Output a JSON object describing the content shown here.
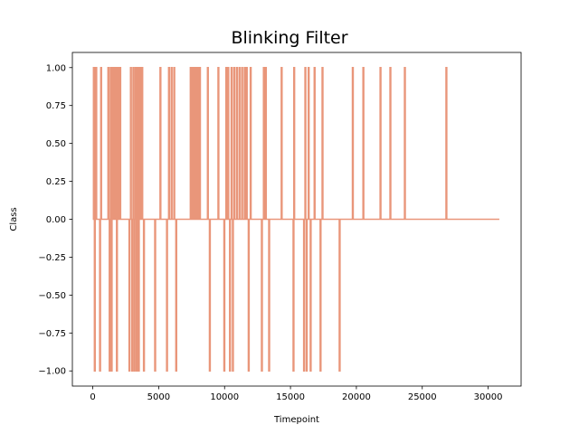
{
  "chart_data": {
    "type": "line",
    "title": "Blinking Filter",
    "xlabel": "Timepoint",
    "ylabel": "Class",
    "xlim": [
      -1550,
      32500
    ],
    "ylim": [
      -1.1,
      1.1
    ],
    "xticks": [
      0,
      5000,
      10000,
      15000,
      20000,
      25000,
      30000
    ],
    "xtick_labels": [
      "0",
      "5000",
      "10000",
      "15000",
      "20000",
      "25000",
      "30000"
    ],
    "yticks": [
      -1.0,
      -0.75,
      -0.5,
      -0.25,
      0.0,
      0.25,
      0.5,
      0.75,
      1.0
    ],
    "ytick_labels": [
      "−1.00",
      "−0.75",
      "−0.50",
      "−0.25",
      "0.00",
      "0.25",
      "0.50",
      "0.75",
      "1.00"
    ],
    "grid": false,
    "legend": "none",
    "x_end": 30850,
    "series": [
      {
        "color": "#E9967A",
        "spikes": [
          {
            "x": 50,
            "v": 1
          },
          {
            "x": 120,
            "v": -1
          },
          {
            "x": 180,
            "v": 1
          },
          {
            "x": 230,
            "v": 1
          },
          {
            "x": 520,
            "v": -1
          },
          {
            "x": 600,
            "v": 1
          },
          {
            "x": 1150,
            "v": 1
          },
          {
            "x": 1250,
            "v": -1
          },
          {
            "x": 1330,
            "v": 1
          },
          {
            "x": 1400,
            "v": -1
          },
          {
            "x": 1480,
            "v": 1
          },
          {
            "x": 1560,
            "v": 1
          },
          {
            "x": 1640,
            "v": 1
          },
          {
            "x": 1720,
            "v": 1
          },
          {
            "x": 1800,
            "v": -1
          },
          {
            "x": 1880,
            "v": 1
          },
          {
            "x": 1960,
            "v": 1
          },
          {
            "x": 2050,
            "v": 1
          },
          {
            "x": 2750,
            "v": -1
          },
          {
            "x": 2860,
            "v": 1
          },
          {
            "x": 2960,
            "v": -1
          },
          {
            "x": 3050,
            "v": 1
          },
          {
            "x": 3130,
            "v": -1
          },
          {
            "x": 3220,
            "v": 1
          },
          {
            "x": 3300,
            "v": -1
          },
          {
            "x": 3380,
            "v": 1
          },
          {
            "x": 3460,
            "v": -1
          },
          {
            "x": 3540,
            "v": 1
          },
          {
            "x": 3620,
            "v": 1
          },
          {
            "x": 3720,
            "v": 1
          },
          {
            "x": 3850,
            "v": -1
          },
          {
            "x": 4700,
            "v": -1
          },
          {
            "x": 5100,
            "v": 1
          },
          {
            "x": 5600,
            "v": -1
          },
          {
            "x": 5750,
            "v": 1
          },
          {
            "x": 5950,
            "v": 1
          },
          {
            "x": 6150,
            "v": 1
          },
          {
            "x": 6300,
            "v": -1
          },
          {
            "x": 7400,
            "v": 1
          },
          {
            "x": 7550,
            "v": 1
          },
          {
            "x": 7700,
            "v": 1
          },
          {
            "x": 7850,
            "v": 1
          },
          {
            "x": 7950,
            "v": 1
          },
          {
            "x": 8100,
            "v": 1
          },
          {
            "x": 8700,
            "v": 1
          },
          {
            "x": 8850,
            "v": -1
          },
          {
            "x": 9500,
            "v": 1
          },
          {
            "x": 9950,
            "v": -1
          },
          {
            "x": 10100,
            "v": 1
          },
          {
            "x": 10250,
            "v": 1
          },
          {
            "x": 10380,
            "v": -1
          },
          {
            "x": 10500,
            "v": 1
          },
          {
            "x": 10600,
            "v": -1
          },
          {
            "x": 10700,
            "v": 1
          },
          {
            "x": 10900,
            "v": 1
          },
          {
            "x": 11100,
            "v": 1
          },
          {
            "x": 11300,
            "v": 1
          },
          {
            "x": 11500,
            "v": 1
          },
          {
            "x": 11650,
            "v": 1
          },
          {
            "x": 11800,
            "v": -1
          },
          {
            "x": 11950,
            "v": 1
          },
          {
            "x": 12800,
            "v": -1
          },
          {
            "x": 12950,
            "v": 1
          },
          {
            "x": 13100,
            "v": 1
          },
          {
            "x": 13350,
            "v": -1
          },
          {
            "x": 14300,
            "v": 1
          },
          {
            "x": 15200,
            "v": -1
          },
          {
            "x": 15250,
            "v": 1
          },
          {
            "x": 16000,
            "v": -1
          },
          {
            "x": 16100,
            "v": 1
          },
          {
            "x": 16200,
            "v": -1
          },
          {
            "x": 16350,
            "v": 1
          },
          {
            "x": 16500,
            "v": -1
          },
          {
            "x": 16800,
            "v": 1
          },
          {
            "x": 17250,
            "v": -1
          },
          {
            "x": 17400,
            "v": 1
          },
          {
            "x": 18700,
            "v": -1
          },
          {
            "x": 19700,
            "v": 1
          },
          {
            "x": 20500,
            "v": 1
          },
          {
            "x": 21800,
            "v": 1
          },
          {
            "x": 22550,
            "v": 1
          },
          {
            "x": 23650,
            "v": 1
          },
          {
            "x": 26800,
            "v": 1
          }
        ]
      }
    ]
  }
}
